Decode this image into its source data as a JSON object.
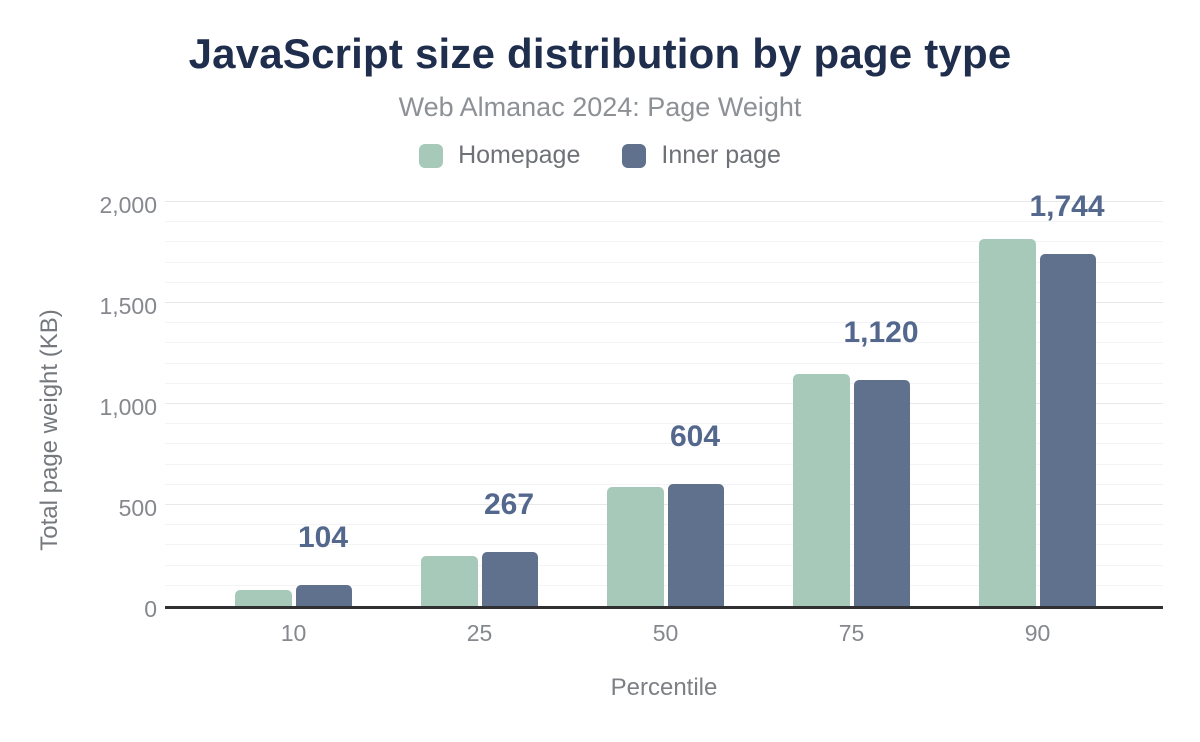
{
  "chart": {
    "title": "JavaScript size distribution by page type",
    "subtitle": "Web Almanac 2024: Page Weight",
    "x_axis_label": "Percentile",
    "y_axis_label": "Total page weight (KB)"
  },
  "legend": [
    {
      "label": "Homepage",
      "color": "#a7c9ba"
    },
    {
      "label": "Inner page",
      "color": "#5f718c"
    }
  ],
  "chart_data": {
    "type": "bar",
    "title": "JavaScript size distribution by page type",
    "subtitle": "Web Almanac 2024: Page Weight",
    "xlabel": "Percentile",
    "ylabel": "Total page weight (KB)",
    "categories": [
      "10",
      "25",
      "50",
      "75",
      "90"
    ],
    "series": [
      {
        "name": "Homepage",
        "color": "#a7c9ba",
        "values": [
          79,
          248,
          589,
          1147,
          1817
        ]
      },
      {
        "name": "Inner page",
        "color": "#5f718c",
        "values": [
          104,
          267,
          604,
          1120,
          1744
        ]
      }
    ],
    "data_labels": {
      "series": "Inner page",
      "formatted": [
        "104",
        "267",
        "604",
        "1,120",
        "1,744"
      ],
      "color": "#54688e"
    },
    "ylim": [
      0,
      2000
    ],
    "yticks": [
      0,
      500,
      1000,
      1500,
      2000
    ],
    "ytick_labels": [
      "0",
      "500",
      "1,000",
      "1,500",
      "2,000"
    ],
    "minor_grid_step": 100,
    "grid": true,
    "legend_position": "top",
    "colors": {
      "title": "#202e4e",
      "subtitle": "#8d9196",
      "axis_text": "#85888d",
      "axis_line": "#303033",
      "major_grid": "#e8e8ea",
      "minor_grid": "#f4f4f6"
    }
  }
}
